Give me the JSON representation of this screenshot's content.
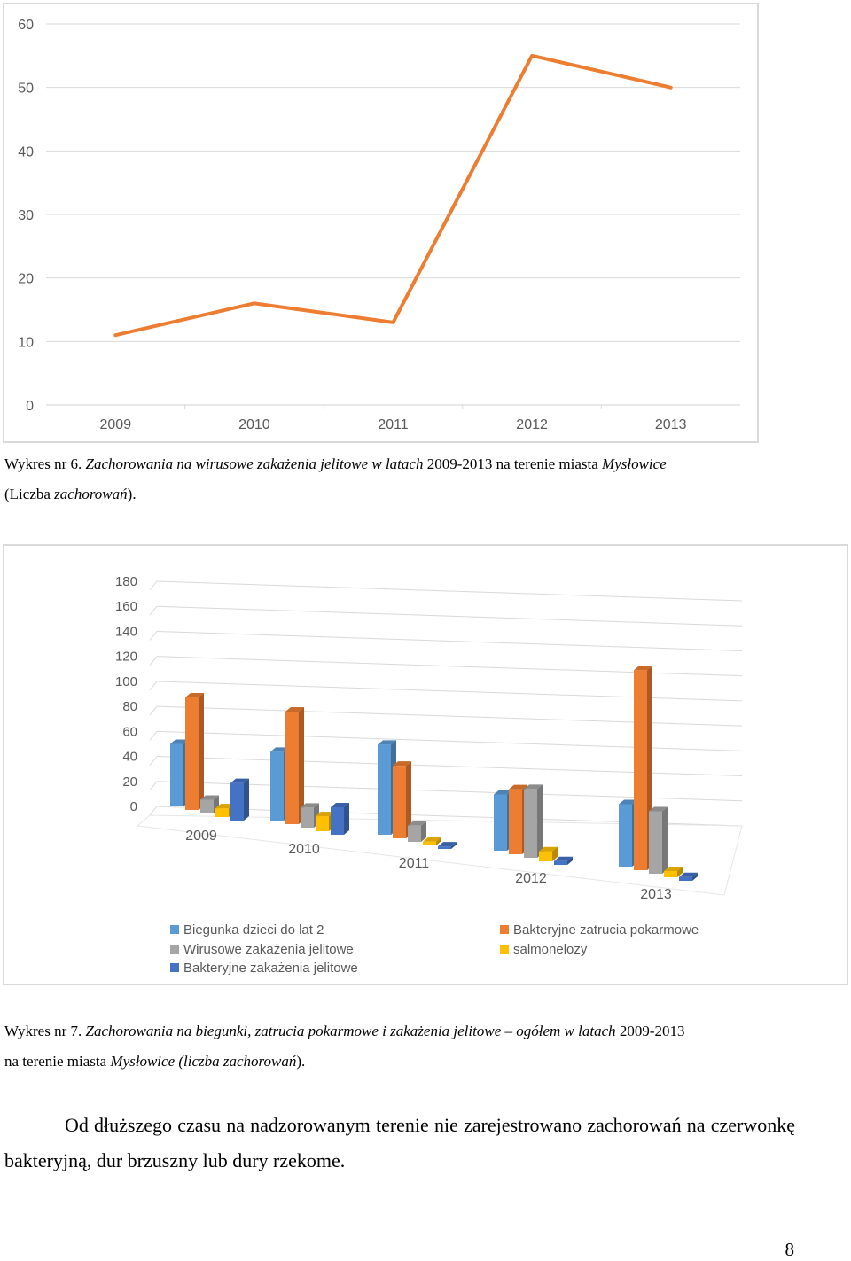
{
  "chart_data": [
    {
      "type": "line",
      "categories": [
        "2009",
        "2010",
        "2011",
        "2012",
        "2013"
      ],
      "series": [
        {
          "values": [
            11,
            16,
            13,
            55,
            50
          ]
        }
      ],
      "ylim": [
        0,
        60
      ],
      "yticks": [
        "0",
        "10",
        "20",
        "30",
        "40",
        "50",
        "60"
      ],
      "grid": true,
      "colors": [
        "#ED7D31"
      ]
    },
    {
      "type": "bar",
      "categories": [
        "2009",
        "2010",
        "2011",
        "2012",
        "2013"
      ],
      "series": [
        {
          "name": "Biegunka dzieci do lat 2",
          "values": [
            50,
            55,
            72,
            45,
            50
          ]
        },
        {
          "name": "Bakteryjne zatrucia pokarmowe",
          "values": [
            90,
            90,
            58,
            52,
            160
          ]
        },
        {
          "name": "Wirusowe zakażenia jelitowe",
          "values": [
            11,
            16,
            13,
            55,
            50
          ]
        },
        {
          "name": "salmonelozy",
          "values": [
            7,
            12,
            3,
            8,
            5
          ]
        },
        {
          "name": "Bakteryjne zakażenia jelitowe",
          "values": [
            30,
            22,
            2,
            3,
            3
          ]
        }
      ],
      "ylim": [
        0,
        180
      ],
      "yticks": [
        "0",
        "20",
        "40",
        "60",
        "80",
        "100",
        "120",
        "140",
        "160",
        "180"
      ],
      "legend_position": "bottom",
      "colors": [
        "#5B9BD5",
        "#ED7D31",
        "#A5A5A5",
        "#FFC000",
        "#4472C4"
      ]
    }
  ],
  "caption1": {
    "prefix": "Wykres nr 6. ",
    "italic": "Zachorowania na wirusowe zakażenia jelitowe w latach ",
    "years": "2009-2013",
    "mid": " na terenie miasta ",
    "city": "Mysłowice",
    "line2_start": "(Liczba ",
    "line2_italic": "zachorowań",
    "line2_end": ")."
  },
  "caption2": {
    "prefix": "Wykres nr 7. ",
    "italic": "Zachorowania na biegunki, zatrucia pokarmowe i zakażenia jelitowe – ogółem w latach ",
    "years": "2009-2013",
    "line2_start": "na terenie miasta ",
    "line2_italic": "Mysłowice (liczba zachorowań",
    "line2_end": ")."
  },
  "paragraph": "Od dłuższego czasu na nadzorowanym terenie nie zarejestrowano zachorowań na czerwonkę bakteryjną, dur brzuszny lub dury rzekome.",
  "page_number": "8"
}
